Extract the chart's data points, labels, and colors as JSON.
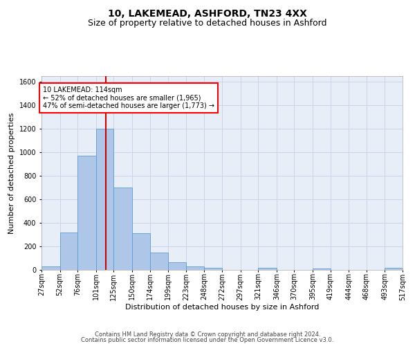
{
  "title1": "10, LAKEMEAD, ASHFORD, TN23 4XX",
  "title2": "Size of property relative to detached houses in Ashford",
  "xlabel": "Distribution of detached houses by size in Ashford",
  "ylabel": "Number of detached properties",
  "footer1": "Contains HM Land Registry data © Crown copyright and database right 2024.",
  "footer2": "Contains public sector information licensed under the Open Government Licence v3.0.",
  "annotation_line1": "10 LAKEMEAD: 114sqm",
  "annotation_line2": "← 52% of detached houses are smaller (1,965)",
  "annotation_line3": "47% of semi-detached houses are larger (1,773) →",
  "property_size": 114,
  "bin_edges": [
    27,
    52,
    76,
    101,
    125,
    150,
    174,
    199,
    223,
    248,
    272,
    297,
    321,
    346,
    370,
    395,
    419,
    444,
    468,
    493,
    517
  ],
  "bar_heights": [
    30,
    320,
    970,
    1200,
    700,
    310,
    150,
    65,
    30,
    15,
    0,
    0,
    20,
    0,
    0,
    10,
    0,
    0,
    0,
    20
  ],
  "bar_color": "#aec6e8",
  "bar_edge_color": "#5b9bd5",
  "vline_color": "#cc0000",
  "grid_color": "#c8d4e8",
  "background_color": "#e8eef8",
  "ylim": [
    0,
    1650
  ],
  "yticks": [
    0,
    200,
    400,
    600,
    800,
    1000,
    1200,
    1400,
    1600
  ],
  "title1_fontsize": 10,
  "title2_fontsize": 9,
  "xlabel_fontsize": 8,
  "ylabel_fontsize": 8,
  "tick_fontsize": 7,
  "footer_fontsize": 6,
  "ann_fontsize": 7
}
